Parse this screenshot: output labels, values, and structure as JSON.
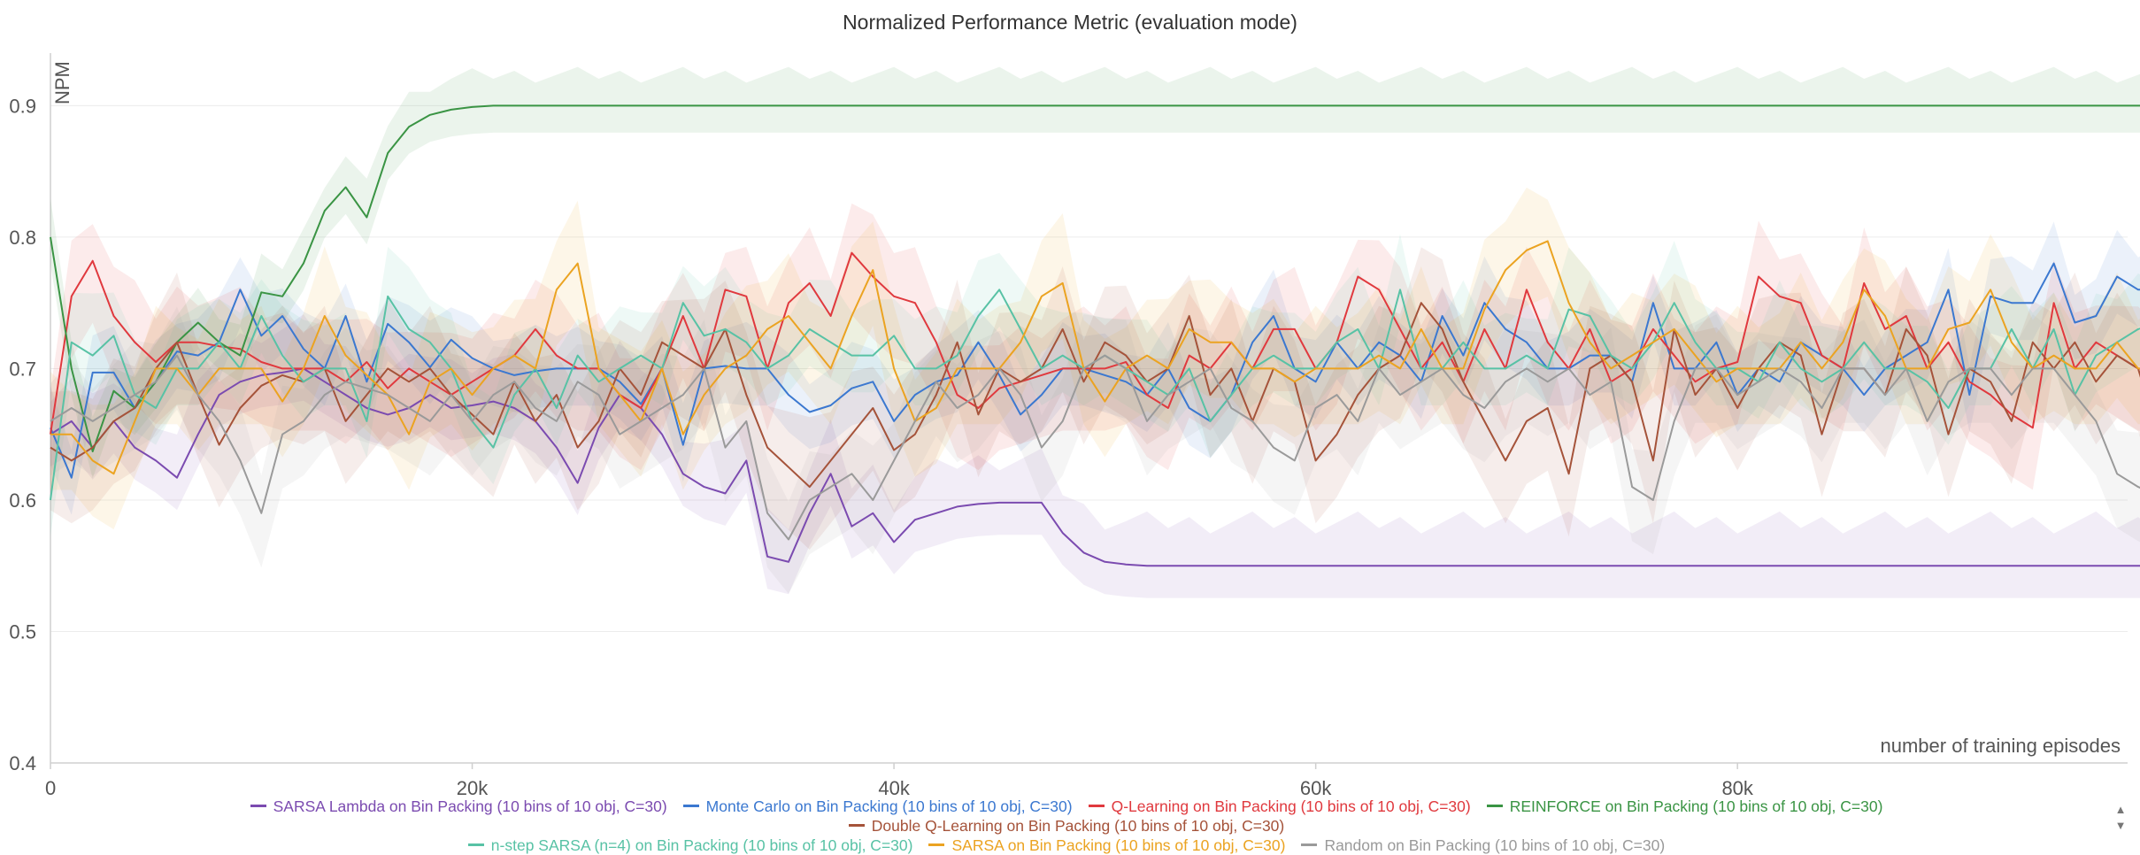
{
  "chart_data": {
    "type": "line",
    "title": "Normalized Performance Metric (evaluation mode)",
    "ylabel": "NPM",
    "xlabel": "number of training episodes",
    "xlim": [
      0,
      100000
    ],
    "ylim": [
      0.4,
      0.94
    ],
    "x_ticks": [
      0,
      20000,
      40000,
      60000,
      80000
    ],
    "x_tick_labels": [
      "0",
      "20k",
      "40k",
      "60k",
      "80k"
    ],
    "y_ticks": [
      0.4,
      0.5,
      0.6,
      0.7,
      0.8,
      0.9
    ],
    "y_tick_labels": [
      "0.4",
      "0.5",
      "0.6",
      "0.7",
      "0.8",
      "0.9"
    ],
    "grid": true,
    "legend_position": "bottom",
    "series_x": [
      0,
      1000,
      2000,
      3000,
      4000,
      5000,
      6000,
      7000,
      8000,
      9000,
      10000,
      11000,
      12000,
      13000,
      14000,
      15000,
      16000,
      17000,
      18000,
      19000,
      20000,
      21000,
      22000,
      23000,
      24000,
      25000,
      26000,
      27000,
      28000,
      29000,
      30000,
      31000,
      32000,
      33000,
      34000,
      35000,
      36000,
      37000,
      38000,
      39000,
      40000,
      41000,
      42000,
      43000,
      44000,
      45000,
      46000,
      47000,
      48000,
      49000,
      50000,
      51000,
      52000,
      53000,
      54000,
      55000,
      56000,
      57000,
      58000,
      59000,
      60000,
      61000,
      62000,
      63000,
      64000,
      65000,
      66000,
      67000,
      68000,
      69000,
      70000,
      71000,
      72000,
      73000,
      74000,
      75000,
      76000,
      77000,
      78000,
      79000,
      80000,
      81000,
      82000,
      83000,
      84000,
      85000,
      86000,
      87000,
      88000,
      89000,
      90000,
      91000,
      92000,
      93000,
      94000,
      95000,
      96000,
      97000,
      98000,
      99000,
      100000
    ],
    "series": [
      {
        "name": "SARSA Lambda on Bin Packing (10 bins of 10 obj, C=30)",
        "color": "#7b4bb0",
        "band_width": 0.035,
        "values": [
          0.65,
          0.66,
          0.64,
          0.66,
          0.64,
          0.63,
          0.617,
          0.65,
          0.68,
          0.69,
          0.695,
          0.697,
          0.7,
          0.69,
          0.68,
          0.67,
          0.665,
          0.67,
          0.68,
          0.67,
          0.672,
          0.675,
          0.67,
          0.66,
          0.64,
          0.613,
          0.655,
          0.68,
          0.67,
          0.65,
          0.62,
          0.61,
          0.605,
          0.63,
          0.557,
          0.553,
          0.59,
          0.62,
          0.58,
          0.59,
          0.568,
          0.585,
          0.59,
          0.595,
          0.597,
          0.598,
          0.598,
          0.598,
          0.575,
          0.56,
          0.553,
          0.551,
          0.55,
          0.55,
          0.55,
          0.55,
          0.55,
          0.55,
          0.55,
          0.55,
          0.55,
          0.55,
          0.55,
          0.55,
          0.55,
          0.55,
          0.55,
          0.55,
          0.55,
          0.55,
          0.55,
          0.55,
          0.55,
          0.55,
          0.55,
          0.55,
          0.55,
          0.55,
          0.55,
          0.55,
          0.55,
          0.55,
          0.55,
          0.55,
          0.55,
          0.55,
          0.55,
          0.55,
          0.55,
          0.55,
          0.55,
          0.55,
          0.55,
          0.55,
          0.55,
          0.55,
          0.55,
          0.55,
          0.55,
          0.55,
          0.55
        ]
      },
      {
        "name": "Monte Carlo on Bin Packing (10 bins of 10 obj, C=30)",
        "color": "#3b78d0",
        "band_width": 0.03,
        "values": [
          0.655,
          0.617,
          0.697,
          0.697,
          0.67,
          0.69,
          0.713,
          0.71,
          0.72,
          0.76,
          0.725,
          0.74,
          0.715,
          0.7,
          0.74,
          0.69,
          0.734,
          0.72,
          0.701,
          0.722,
          0.708,
          0.7,
          0.695,
          0.698,
          0.7,
          0.7,
          0.7,
          0.69,
          0.673,
          0.7,
          0.642,
          0.7,
          0.702,
          0.7,
          0.7,
          0.68,
          0.667,
          0.672,
          0.685,
          0.69,
          0.66,
          0.68,
          0.69,
          0.695,
          0.72,
          0.695,
          0.665,
          0.68,
          0.7,
          0.7,
          0.695,
          0.69,
          0.68,
          0.7,
          0.67,
          0.66,
          0.68,
          0.72,
          0.74,
          0.7,
          0.69,
          0.72,
          0.7,
          0.72,
          0.71,
          0.69,
          0.74,
          0.71,
          0.75,
          0.73,
          0.72,
          0.7,
          0.7,
          0.71,
          0.71,
          0.69,
          0.75,
          0.7,
          0.7,
          0.72,
          0.68,
          0.7,
          0.69,
          0.72,
          0.71,
          0.7,
          0.68,
          0.7,
          0.71,
          0.72,
          0.76,
          0.68,
          0.755,
          0.75,
          0.75,
          0.78,
          0.735,
          0.74,
          0.77,
          0.76,
          0.76
        ]
      },
      {
        "name": "Q-Learning on Bin Packing (10 bins of 10 obj, C=30)",
        "color": "#e0393e",
        "band_width": 0.04,
        "values": [
          0.65,
          0.755,
          0.782,
          0.74,
          0.72,
          0.705,
          0.72,
          0.72,
          0.717,
          0.715,
          0.705,
          0.7,
          0.7,
          0.7,
          0.69,
          0.705,
          0.685,
          0.7,
          0.69,
          0.68,
          0.69,
          0.7,
          0.71,
          0.73,
          0.71,
          0.7,
          0.7,
          0.68,
          0.67,
          0.7,
          0.74,
          0.7,
          0.76,
          0.755,
          0.7,
          0.75,
          0.765,
          0.74,
          0.788,
          0.77,
          0.755,
          0.75,
          0.72,
          0.68,
          0.67,
          0.685,
          0.69,
          0.695,
          0.7,
          0.7,
          0.7,
          0.705,
          0.68,
          0.67,
          0.71,
          0.7,
          0.72,
          0.7,
          0.73,
          0.73,
          0.7,
          0.72,
          0.77,
          0.76,
          0.73,
          0.7,
          0.72,
          0.69,
          0.73,
          0.7,
          0.76,
          0.72,
          0.7,
          0.73,
          0.69,
          0.7,
          0.73,
          0.71,
          0.69,
          0.7,
          0.705,
          0.77,
          0.755,
          0.75,
          0.71,
          0.7,
          0.765,
          0.73,
          0.74,
          0.7,
          0.72,
          0.69,
          0.68,
          0.665,
          0.655,
          0.75,
          0.7,
          0.72,
          0.71,
          0.7,
          0.698
        ]
      },
      {
        "name": "REINFORCE on Bin Packing (10 bins of 10 obj, C=30)",
        "color": "#3a9444",
        "band_width": 0.025,
        "values": [
          0.8,
          0.7,
          0.637,
          0.683,
          0.67,
          0.69,
          0.72,
          0.735,
          0.72,
          0.71,
          0.758,
          0.755,
          0.78,
          0.82,
          0.838,
          0.815,
          0.864,
          0.884,
          0.893,
          0.897,
          0.899,
          0.9,
          0.9,
          0.9,
          0.9,
          0.9,
          0.9,
          0.9,
          0.9,
          0.9,
          0.9,
          0.9,
          0.9,
          0.9,
          0.9,
          0.9,
          0.9,
          0.9,
          0.9,
          0.9,
          0.9,
          0.9,
          0.9,
          0.9,
          0.9,
          0.9,
          0.9,
          0.9,
          0.9,
          0.9,
          0.9,
          0.9,
          0.9,
          0.9,
          0.9,
          0.9,
          0.9,
          0.9,
          0.9,
          0.9,
          0.9,
          0.9,
          0.9,
          0.9,
          0.9,
          0.9,
          0.9,
          0.9,
          0.9,
          0.9,
          0.9,
          0.9,
          0.9,
          0.9,
          0.9,
          0.9,
          0.9,
          0.9,
          0.9,
          0.9,
          0.9,
          0.9,
          0.9,
          0.9,
          0.9,
          0.9,
          0.9,
          0.9,
          0.9,
          0.9,
          0.9,
          0.9,
          0.9,
          0.9,
          0.9,
          0.9,
          0.9,
          0.9,
          0.9,
          0.9,
          0.9
        ]
      },
      {
        "name": "Double Q-Learning on Bin Packing (10 bins of 10 obj, C=30)",
        "color": "#a5533a",
        "band_width": 0.045,
        "values": [
          0.64,
          0.63,
          0.64,
          0.66,
          0.67,
          0.7,
          0.72,
          0.68,
          0.642,
          0.67,
          0.687,
          0.695,
          0.69,
          0.7,
          0.66,
          0.68,
          0.7,
          0.69,
          0.7,
          0.68,
          0.665,
          0.65,
          0.69,
          0.66,
          0.68,
          0.64,
          0.66,
          0.7,
          0.68,
          0.72,
          0.71,
          0.7,
          0.73,
          0.68,
          0.64,
          0.625,
          0.61,
          0.63,
          0.65,
          0.67,
          0.638,
          0.65,
          0.68,
          0.72,
          0.665,
          0.7,
          0.69,
          0.7,
          0.73,
          0.69,
          0.72,
          0.71,
          0.69,
          0.7,
          0.74,
          0.68,
          0.7,
          0.66,
          0.7,
          0.69,
          0.63,
          0.65,
          0.68,
          0.7,
          0.71,
          0.75,
          0.73,
          0.69,
          0.66,
          0.63,
          0.66,
          0.67,
          0.62,
          0.7,
          0.71,
          0.69,
          0.63,
          0.73,
          0.68,
          0.7,
          0.67,
          0.7,
          0.72,
          0.71,
          0.65,
          0.7,
          0.7,
          0.68,
          0.73,
          0.71,
          0.65,
          0.7,
          0.69,
          0.66,
          0.72,
          0.7,
          0.72,
          0.69,
          0.71,
          0.7,
          0.647
        ]
      },
      {
        "name": "n-step SARSA (n=4) on Bin Packing (10 bins of 10 obj, C=30)",
        "color": "#58c2a5",
        "band_width": 0.04,
        "values": [
          0.6,
          0.72,
          0.71,
          0.725,
          0.68,
          0.67,
          0.7,
          0.7,
          0.72,
          0.7,
          0.74,
          0.71,
          0.69,
          0.7,
          0.7,
          0.66,
          0.755,
          0.73,
          0.72,
          0.7,
          0.66,
          0.64,
          0.68,
          0.7,
          0.67,
          0.71,
          0.69,
          0.7,
          0.71,
          0.7,
          0.75,
          0.725,
          0.73,
          0.72,
          0.7,
          0.71,
          0.73,
          0.72,
          0.71,
          0.71,
          0.725,
          0.7,
          0.7,
          0.71,
          0.74,
          0.76,
          0.73,
          0.7,
          0.71,
          0.7,
          0.71,
          0.7,
          0.69,
          0.68,
          0.7,
          0.66,
          0.68,
          0.7,
          0.71,
          0.7,
          0.7,
          0.72,
          0.73,
          0.7,
          0.76,
          0.7,
          0.7,
          0.72,
          0.7,
          0.7,
          0.71,
          0.7,
          0.745,
          0.74,
          0.71,
          0.7,
          0.72,
          0.75,
          0.72,
          0.7,
          0.7,
          0.69,
          0.72,
          0.7,
          0.69,
          0.7,
          0.72,
          0.7,
          0.7,
          0.69,
          0.67,
          0.7,
          0.7,
          0.73,
          0.7,
          0.73,
          0.68,
          0.71,
          0.72,
          0.73,
          0.735
        ]
      },
      {
        "name": "SARSA on Bin Packing (10 bins of 10 obj, C=30)",
        "color": "#eba321",
        "band_width": 0.045,
        "values": [
          0.65,
          0.65,
          0.63,
          0.62,
          0.66,
          0.7,
          0.7,
          0.68,
          0.7,
          0.7,
          0.7,
          0.675,
          0.7,
          0.74,
          0.71,
          0.695,
          0.68,
          0.65,
          0.69,
          0.7,
          0.68,
          0.7,
          0.71,
          0.7,
          0.76,
          0.78,
          0.7,
          0.68,
          0.66,
          0.7,
          0.65,
          0.68,
          0.7,
          0.71,
          0.73,
          0.74,
          0.72,
          0.7,
          0.74,
          0.775,
          0.7,
          0.66,
          0.67,
          0.7,
          0.7,
          0.7,
          0.72,
          0.755,
          0.765,
          0.7,
          0.675,
          0.7,
          0.71,
          0.7,
          0.73,
          0.72,
          0.72,
          0.7,
          0.7,
          0.69,
          0.7,
          0.7,
          0.7,
          0.71,
          0.7,
          0.73,
          0.7,
          0.7,
          0.745,
          0.775,
          0.79,
          0.797,
          0.75,
          0.72,
          0.7,
          0.71,
          0.72,
          0.73,
          0.71,
          0.69,
          0.7,
          0.7,
          0.7,
          0.72,
          0.7,
          0.72,
          0.76,
          0.74,
          0.7,
          0.7,
          0.73,
          0.735,
          0.76,
          0.72,
          0.7,
          0.71,
          0.7,
          0.7,
          0.72,
          0.7,
          0.7
        ]
      },
      {
        "name": "Random on Bin Packing (10 bins of 10 obj, C=30)",
        "color": "#9a9a9a",
        "band_width": 0.035,
        "values": [
          0.66,
          0.67,
          0.66,
          0.67,
          0.68,
          0.69,
          0.71,
          0.68,
          0.66,
          0.63,
          0.59,
          0.65,
          0.66,
          0.68,
          0.69,
          0.685,
          0.68,
          0.67,
          0.66,
          0.68,
          0.66,
          0.68,
          0.69,
          0.67,
          0.66,
          0.69,
          0.68,
          0.65,
          0.66,
          0.67,
          0.68,
          0.7,
          0.64,
          0.66,
          0.59,
          0.57,
          0.6,
          0.61,
          0.62,
          0.6,
          0.63,
          0.66,
          0.69,
          0.67,
          0.68,
          0.7,
          0.68,
          0.64,
          0.66,
          0.7,
          0.71,
          0.7,
          0.66,
          0.68,
          0.69,
          0.7,
          0.67,
          0.66,
          0.64,
          0.63,
          0.67,
          0.68,
          0.66,
          0.7,
          0.68,
          0.69,
          0.7,
          0.68,
          0.67,
          0.69,
          0.7,
          0.69,
          0.7,
          0.68,
          0.69,
          0.61,
          0.6,
          0.66,
          0.7,
          0.7,
          0.68,
          0.69,
          0.7,
          0.69,
          0.67,
          0.7,
          0.7,
          0.68,
          0.7,
          0.66,
          0.69,
          0.7,
          0.7,
          0.68,
          0.7,
          0.7,
          0.68,
          0.66,
          0.62,
          0.61,
          0.603
        ]
      }
    ]
  },
  "legend_rows": [
    [
      0,
      1,
      2,
      3,
      4
    ],
    [
      5,
      6,
      7
    ]
  ],
  "scroll": {
    "up_icon": "▲",
    "down_icon": "▼"
  }
}
